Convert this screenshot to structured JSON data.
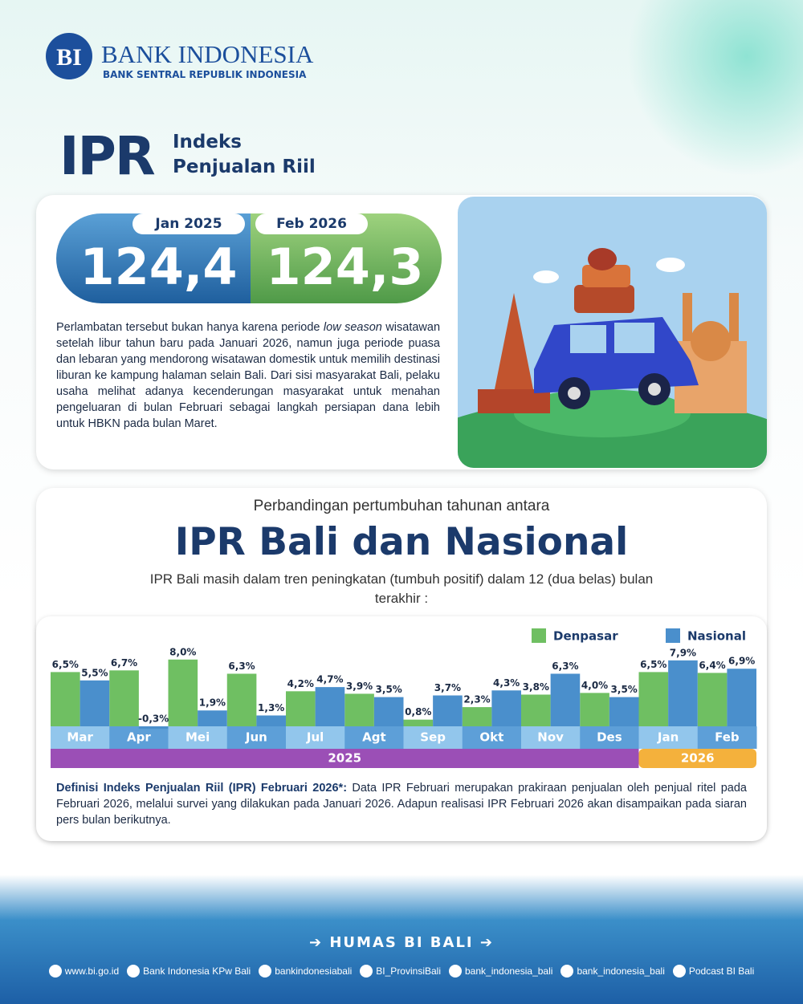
{
  "header": {
    "bank": "BANK INDONESIA",
    "subtitle": "BANK SENTRAL REPUBLIK INDONESIA"
  },
  "title": {
    "short": "IPR",
    "line1": "Indeks",
    "line2": "Penjualan Riil"
  },
  "stats": [
    {
      "label": "Jan 2025",
      "value": "124,4"
    },
    {
      "label": "Feb 2026",
      "value": "124,3"
    }
  ],
  "paragraph": [
    "Perlambatan tersebut bukan hanya karena periode ",
    "low season",
    " wisatawan setelah libur tahun baru pada Januari 2026, namun juga periode puasa dan lebaran yang mendorong wisatawan domestik untuk memilih destinasi liburan ke kampung halaman selain Bali. Dari sisi masyarakat Bali, pelaku usaha melihat adanya kecenderungan masyarakat untuk menahan pengeluaran di bulan Februari sebagai langkah persiapan dana lebih untuk HBKN pada bulan Maret."
  ],
  "section": {
    "kicker": "Perbandingan pertumbuhan tahunan antara",
    "heading": "IPR Bali dan Nasional",
    "description": "IPR Bali masih dalam tren peningkatan (tumbuh positif) dalam 12 (dua belas) bulan terakhir :"
  },
  "chart_data": {
    "type": "bar",
    "legend": "top-right",
    "categories": [
      "Mar",
      "Apr",
      "Mei",
      "Jun",
      "Jul",
      "Agt",
      "Sep",
      "Okt",
      "Nov",
      "Des",
      "Jan",
      "Feb"
    ],
    "groups": [
      {
        "label": "2025",
        "color": "#9b4fb6"
      },
      {
        "label": "2026",
        "color": "#f4b13c"
      }
    ],
    "series": [
      {
        "name": "Denpasar",
        "color": "#6fbf62",
        "values": [
          6.5,
          6.7,
          8.0,
          6.3,
          4.2,
          3.9,
          0.8,
          2.3,
          3.8,
          4.0,
          6.5,
          6.4
        ],
        "value_labels": [
          "6,5%",
          "6,7%",
          "8,0%",
          "6,3%",
          "4,2%",
          "3,9%",
          "0,8%",
          "2,3%",
          "3,8%",
          "4,0%",
          "6,5%",
          "6,4%"
        ]
      },
      {
        "name": "Nasional",
        "color": "#4a8fcc",
        "values": [
          5.5,
          -0.3,
          1.9,
          1.3,
          4.7,
          3.5,
          3.7,
          4.3,
          6.3,
          3.5,
          7.9,
          6.9
        ],
        "value_labels": [
          "5,5%",
          "-0,3%",
          "1,9%",
          "1,3%",
          "4,7%",
          "3,5%",
          "3,7%",
          "4,3%",
          "6,3%",
          "3,5%",
          "7,9%",
          "6,9%"
        ]
      }
    ]
  },
  "note": {
    "label": "Definisi Indeks Penjualan Riil (IPR) Februari 2026*:",
    "text": " Data IPR Februari merupakan prakiraan penjualan oleh penjual ritel pada Februari 2026, melalui survei yang dilakukan pada Januari 2026. Adapun realisasi IPR Februari 2026 akan disampaikan pada siaran pers bulan berikutnya."
  },
  "footer": {
    "title": "HUMAS BI BALI",
    "links": [
      "www.bi.go.id",
      "Bank Indonesia KPw Bali",
      "bankindonesiabali",
      "BI_ProvinsiBali",
      "bank_indonesia_bali",
      "bank_indonesia_bali",
      "Podcast BI Bali"
    ]
  }
}
